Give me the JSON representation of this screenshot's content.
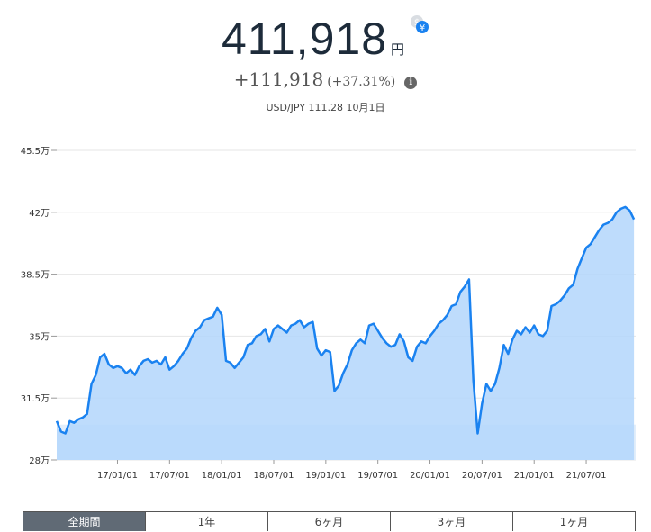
{
  "summary": {
    "value": "411,918",
    "unit": "円",
    "change_amount": "+111,918",
    "change_percent": "(+37.31%)",
    "rate_text": "USD/JPY 111.28 10月1日"
  },
  "icons": {
    "currency": "dollar-yen-swap-icon",
    "info": "info-icon"
  },
  "tabs": [
    {
      "label": "全期間",
      "active": true
    },
    {
      "label": "1年",
      "active": false
    },
    {
      "label": "6ヶ月",
      "active": false
    },
    {
      "label": "3ヶ月",
      "active": false
    },
    {
      "label": "1ヶ月",
      "active": false
    }
  ],
  "colors": {
    "line": "#1a82f0",
    "area": "#b3d6fb",
    "baseline_band": "#e2eefb",
    "active_tab": "#606a75"
  },
  "chart_data": {
    "type": "area",
    "title": "",
    "xlabel": "",
    "ylabel": "",
    "ylim": [
      28,
      45.5
    ],
    "y_ticks": [
      28,
      31.5,
      35,
      38.5,
      42,
      45.5
    ],
    "y_tick_labels": [
      "28万",
      "31.5万",
      "35万",
      "38.5万",
      "42万",
      "45.5万"
    ],
    "x_tick_labels": [
      "17/01/01",
      "17/07/01",
      "18/01/01",
      "18/07/01",
      "19/01/01",
      "19/07/01",
      "20/01/01",
      "20/07/01",
      "21/01/01",
      "21/07/01"
    ],
    "x_tick_months": [
      7,
      13,
      19,
      25,
      31,
      37,
      43,
      49,
      55,
      61
    ],
    "x_range_months": [
      0,
      66.7
    ],
    "baseline": 30,
    "grid": true,
    "series": [
      {
        "x_months": [
          0,
          0.5,
          1,
          1.5,
          2,
          2.5,
          3,
          3.5,
          4,
          4.5,
          5,
          5.5,
          6,
          6.5,
          7,
          7.5,
          8,
          8.5,
          9,
          9.5,
          10,
          10.5,
          11,
          11.5,
          12,
          12.5,
          13,
          13.5,
          14,
          14.5,
          15,
          15.5,
          16,
          16.5,
          17,
          17.5,
          18,
          18.5,
          19,
          19.5,
          20,
          20.5,
          21,
          21.5,
          22,
          22.5,
          23,
          23.5,
          24,
          24.5,
          25,
          25.5,
          26,
          26.5,
          27,
          27.5,
          28,
          28.5,
          29,
          29.5,
          30,
          30.5,
          31,
          31.5,
          32,
          32.5,
          33,
          33.5,
          34,
          34.5,
          35,
          35.5,
          36,
          36.5,
          37,
          37.5,
          38,
          38.5,
          39,
          39.5,
          40,
          40.5,
          41,
          41.5,
          42,
          42.5,
          43,
          43.5,
          44,
          44.5,
          45,
          45.5,
          46,
          46.5,
          47,
          47.5,
          48,
          48.5,
          49,
          49.5,
          50,
          50.5,
          51,
          51.5,
          52,
          52.5,
          53,
          53.5,
          54,
          54.5,
          55,
          55.5,
          56,
          56.5,
          57,
          57.5,
          58,
          58.5,
          59,
          59.5,
          60,
          60.5,
          61,
          61.5,
          62,
          62.5,
          63,
          63.5,
          64,
          64.5,
          65,
          65.5,
          66,
          66.5
        ],
        "values": [
          30.2,
          29.6,
          29.5,
          30.2,
          30.1,
          30.3,
          30.4,
          30.6,
          32.3,
          32.8,
          33.8,
          34.0,
          33.4,
          33.2,
          33.3,
          33.2,
          32.9,
          33.1,
          32.8,
          33.3,
          33.6,
          33.7,
          33.5,
          33.6,
          33.4,
          33.8,
          33.1,
          33.3,
          33.6,
          34.0,
          34.3,
          34.9,
          35.3,
          35.5,
          35.9,
          36.0,
          36.1,
          36.6,
          36.2,
          33.6,
          33.5,
          33.2,
          33.5,
          33.8,
          34.5,
          34.6,
          35.0,
          35.1,
          35.4,
          34.7,
          35.4,
          35.6,
          35.4,
          35.2,
          35.6,
          35.7,
          35.9,
          35.5,
          35.7,
          35.8,
          34.3,
          33.9,
          34.2,
          34.1,
          31.9,
          32.2,
          32.9,
          33.4,
          34.2,
          34.6,
          34.8,
          34.6,
          35.6,
          35.7,
          35.3,
          34.9,
          34.6,
          34.4,
          34.5,
          35.1,
          34.7,
          33.8,
          33.6,
          34.4,
          34.7,
          34.6,
          35.0,
          35.3,
          35.7,
          35.9,
          36.2,
          36.7,
          36.8,
          37.5,
          37.8,
          38.2,
          32.5,
          29.5,
          31.2,
          32.3,
          31.9,
          32.3,
          33.2,
          34.5,
          34.0,
          34.8,
          35.3,
          35.1,
          35.5,
          35.2,
          35.6,
          35.1,
          35.0,
          35.3,
          36.7,
          36.8,
          37.0,
          37.3,
          37.7,
          37.9,
          38.8,
          39.4,
          40.0,
          40.2,
          40.6,
          41.0,
          41.3,
          41.4,
          41.6,
          42.0,
          42.2,
          42.3,
          42.1,
          41.6
        ]
      }
    ]
  }
}
